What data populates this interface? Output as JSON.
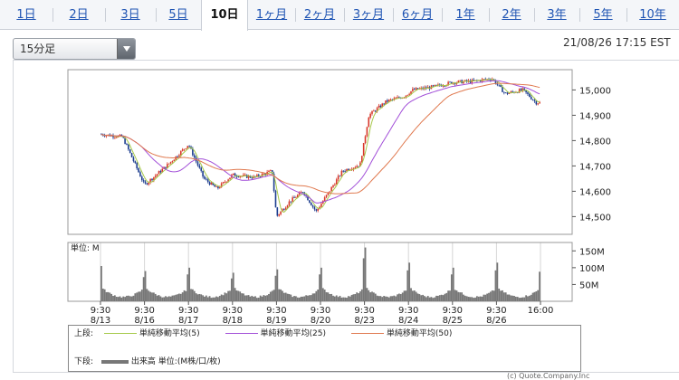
{
  "tabs": [
    {
      "label": "1日"
    },
    {
      "label": "2日"
    },
    {
      "label": "3日"
    },
    {
      "label": "5日"
    },
    {
      "label": "10日"
    },
    {
      "label": "1ヶ月"
    },
    {
      "label": "2ヶ月"
    },
    {
      "label": "3ヶ月"
    },
    {
      "label": "6ヶ月"
    },
    {
      "label": "1年"
    },
    {
      "label": "2年"
    },
    {
      "label": "3年"
    },
    {
      "label": "5年"
    },
    {
      "label": "10年"
    }
  ],
  "active_tab": "10日",
  "interval_select": {
    "value": "15分足"
  },
  "timestamp": "21/08/26 17:15 EST",
  "colors": {
    "up": "#d8392b",
    "down": "#1c3d8f",
    "ma5": "#a6c94a",
    "ma25": "#a24fd8",
    "ma50": "#e0794f",
    "volume": "#777777",
    "tab_link": "#1f54b3"
  },
  "chart_data": {
    "type": "candlestick",
    "price_panel": {
      "ylim": [
        14430,
        15080
      ],
      "yticks": [
        "15,000",
        "14,900",
        "14,800",
        "14,700",
        "14,600",
        "14,500"
      ],
      "ytick_values": [
        15000,
        14900,
        14800,
        14700,
        14600,
        14500
      ],
      "grid": true,
      "key_closes": [
        {
          "x": 0,
          "close": 14825
        },
        {
          "x": 0.5,
          "close": 14815
        },
        {
          "x": 1,
          "close": 14625
        },
        {
          "x": 1.5,
          "close": 14700
        },
        {
          "x": 2,
          "close": 14785
        },
        {
          "x": 2.35,
          "close": 14650
        },
        {
          "x": 2.65,
          "close": 14610
        },
        {
          "x": 3,
          "close": 14665
        },
        {
          "x": 3.5,
          "close": 14655
        },
        {
          "x": 3.9,
          "close": 14680
        },
        {
          "x": 4,
          "close": 14500
        },
        {
          "x": 4.3,
          "close": 14560
        },
        {
          "x": 4.6,
          "close": 14600
        },
        {
          "x": 4.9,
          "close": 14520
        },
        {
          "x": 5.2,
          "close": 14600
        },
        {
          "x": 5.5,
          "close": 14680
        },
        {
          "x": 5.9,
          "close": 14705
        },
        {
          "x": 6.1,
          "close": 14900
        },
        {
          "x": 6.5,
          "close": 14955
        },
        {
          "x": 6.9,
          "close": 14975
        },
        {
          "x": 7.1,
          "close": 15000
        },
        {
          "x": 7.5,
          "close": 15010
        },
        {
          "x": 8,
          "close": 15030
        },
        {
          "x": 8.5,
          "close": 15035
        },
        {
          "x": 8.9,
          "close": 15045
        },
        {
          "x": 9.2,
          "close": 14985
        },
        {
          "x": 9.6,
          "close": 15000
        },
        {
          "x": 9.9,
          "close": 14950
        }
      ]
    },
    "volume_panel": {
      "unit_label": "単位: M",
      "yticks": [
        "150M",
        "100M",
        "50M"
      ],
      "ytick_values": [
        150,
        100,
        50
      ],
      "ylim": [
        0,
        175
      ],
      "session_open_volume": [
        105,
        90,
        100,
        85,
        95,
        100,
        160,
        115,
        100,
        115,
        110
      ]
    },
    "x_axis": {
      "sessions": 10,
      "tick_labels": [
        {
          "time": "9:30",
          "date": "8/13"
        },
        {
          "time": "9:30",
          "date": "8/16"
        },
        {
          "time": "9:30",
          "date": "8/17"
        },
        {
          "time": "9:30",
          "date": "8/18"
        },
        {
          "time": "9:30",
          "date": "8/19"
        },
        {
          "time": "9:30",
          "date": "8/20"
        },
        {
          "time": "9:30",
          "date": "8/23"
        },
        {
          "time": "9:30",
          "date": "8/24"
        },
        {
          "time": "9:30",
          "date": "8/25"
        },
        {
          "time": "9:30",
          "date": "8/26"
        },
        {
          "time": "16:00",
          "date": ""
        }
      ]
    },
    "moving_averages": [
      5,
      25,
      50
    ]
  },
  "legend": {
    "upper_label": "上段:",
    "lower_label": "下段:",
    "items": [
      {
        "name": "単純移動平均(5)"
      },
      {
        "name": "単純移動平均(25)"
      },
      {
        "name": "単純移動平均(50)"
      }
    ],
    "volume_name": "出来高 単位:(M株/口/枚)"
  },
  "copyright": "(c) Quote.Company.Inc"
}
